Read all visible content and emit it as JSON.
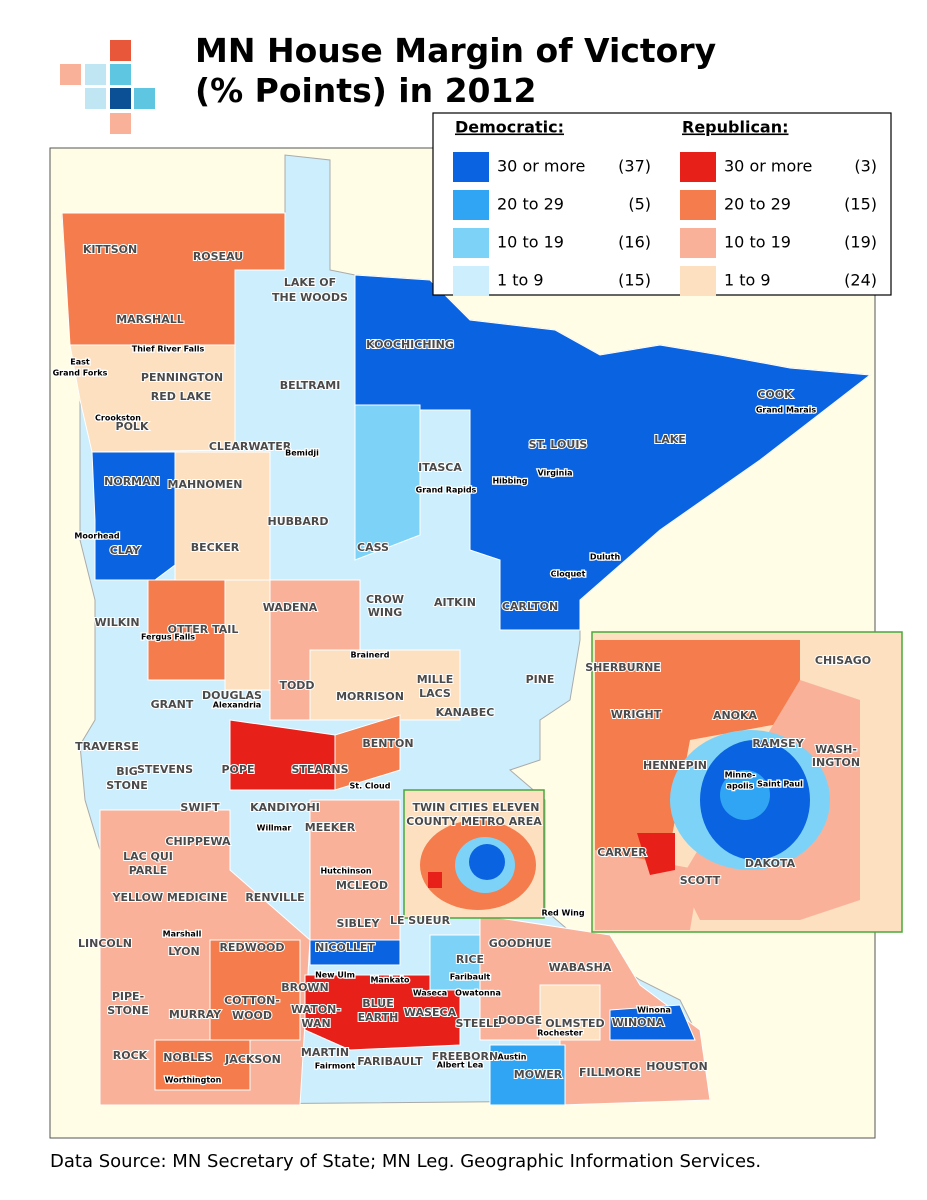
{
  "header": {
    "title_lines": [
      "MN House Margin of Victory",
      "(% Points)  in 2012"
    ]
  },
  "legend": {
    "groups": [
      {
        "heading": "Democratic:",
        "items": [
          {
            "label": "30 or more",
            "count": "(37)",
            "color": "#0a63e0"
          },
          {
            "label": "20 to 29",
            "count": "(5)",
            "color": "#2fa5f4"
          },
          {
            "label": "10 to 19",
            "count": "(16)",
            "color": "#7dd3f7"
          },
          {
            "label": "1 to 9",
            "count": "(15)",
            "color": "#cdeefc"
          }
        ]
      },
      {
        "heading": "Republican:",
        "items": [
          {
            "label": "30 or more",
            "count": "(3)",
            "color": "#e8201a"
          },
          {
            "label": "20 to 29",
            "count": "(15)",
            "color": "#f47c4d"
          },
          {
            "label": "10 to 19",
            "count": "(19)",
            "color": "#f9b19a"
          },
          {
            "label": "1 to 9",
            "count": "(24)",
            "color": "#fde0c0"
          }
        ]
      }
    ]
  },
  "map": {
    "counties": [
      "KITTSON",
      "ROSEAU",
      "MARSHALL",
      "LAKE OF",
      "THE WOODS",
      "KOOCHICHING",
      "PENNINGTON",
      "RED LAKE",
      "POLK",
      "BELTRAMI",
      "COOK",
      "LAKE",
      "ST. LOUIS",
      "CLEARWATER",
      "ITASCA",
      "NORMAN",
      "MAHNOMEN",
      "HUBBARD",
      "BECKER",
      "CLAY",
      "CASS",
      "CROW",
      "WING",
      "AITKIN",
      "CARLTON",
      "WILKIN",
      "OTTER TAIL",
      "WADENA",
      "PINE",
      "TODD",
      "MORRISON",
      "MILLE",
      "LACS",
      "KANABEC",
      "GRANT",
      "DOUGLAS",
      "TRAVERSE",
      "BIG",
      "STONE",
      "STEVENS",
      "POPE",
      "STEARNS",
      "BENTON",
      "SWIFT",
      "KANDIYOHI",
      "CHIPPEWA",
      "MEEKER",
      "LAC QUI",
      "PARLE",
      "MCLEOD",
      "YELLOW MEDICINE",
      "RENVILLE",
      "SIBLEY",
      "LINCOLN",
      "LYON",
      "REDWOOD",
      "NICOLLET",
      "LE SUEUR",
      "GOODHUE",
      "RICE",
      "WABASHA",
      "BROWN",
      "PIPE-",
      "STONE",
      "MURRAY",
      "COTTON-",
      "WOOD",
      "WATON-",
      "WAN",
      "BLUE",
      "EARTH",
      "WASECA",
      "STEELE",
      "DODGE",
      "OLMSTED",
      "WINONA",
      "ROCK",
      "NOBLES",
      "JACKSON",
      "MARTIN",
      "FARIBAULT",
      "FREEBORN",
      "MOWER",
      "FILLMORE",
      "HOUSTON"
    ],
    "cities": [
      "Thief River Falls",
      "East",
      "Grand Forks",
      "Crookston",
      "Bemidji",
      "Grand Rapids",
      "Hibbing",
      "Virginia",
      "Moorhead",
      "Duluth",
      "Cloquet",
      "Fergus Falls",
      "Brainerd",
      "Alexandria",
      "St. Cloud",
      "Willmar",
      "Hutchinson",
      "Red Wing",
      "Marshall",
      "New Ulm",
      "Mankato",
      "Faribault",
      "Waseca",
      "Owatonna",
      "Rochester",
      "Winona",
      "Worthington",
      "Fairmont",
      "Albert Lea",
      "Austin",
      "Grand Marais"
    ],
    "metro_box": [
      "TWIN CITIES ELEVEN",
      "COUNTY METRO AREA"
    ],
    "inset": [
      "SHERBURNE",
      "CHISAGO",
      "WRIGHT",
      "ANOKA",
      "WASH-",
      "INGTON",
      "RAMSEY",
      "HENNEPIN",
      "Minne-",
      "apolis",
      "Saint Paul",
      "CARVER",
      "DAKOTA",
      "SCOTT"
    ]
  },
  "footer": {
    "source": "Data Source:  MN Secretary of State; MN Leg. Geographic Information Services."
  }
}
